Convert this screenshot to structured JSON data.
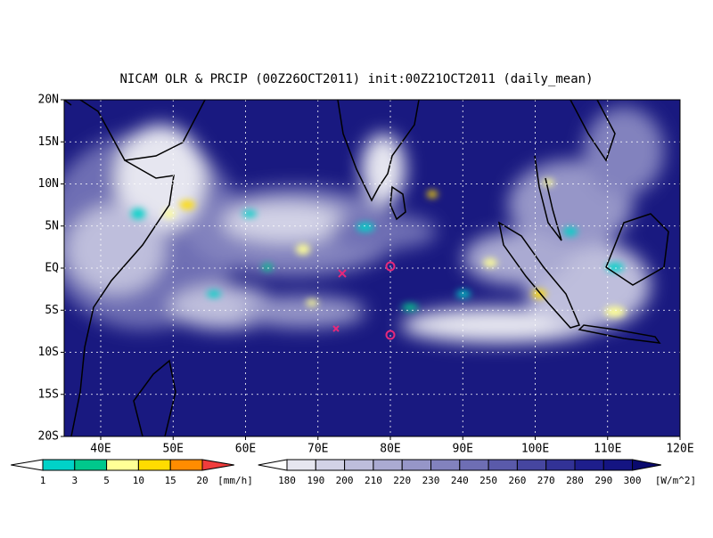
{
  "title": "NICAM OLR & PRCIP (00Z26OCT2011) init:00Z21OCT2011 (daily_mean)",
  "lat_labels": [
    "20N",
    "15N",
    "10N",
    "5N",
    "EQ",
    "5S",
    "10S",
    "15S",
    "20S"
  ],
  "lon_labels": [
    "40E",
    "50E",
    "60E",
    "70E",
    "80E",
    "90E",
    "100E",
    "110E",
    "120E"
  ],
  "precip_colorbar": {
    "ticks": [
      1,
      3,
      5,
      10,
      15,
      20
    ],
    "unit": "[mm/h]",
    "colors": [
      "#ffffff",
      "#00d2c8",
      "#00c88c",
      "#ffff96",
      "#ffdc00",
      "#ff8c00",
      "#f03c3c"
    ]
  },
  "olr_colorbar": {
    "ticks": [
      180,
      190,
      200,
      210,
      220,
      230,
      240,
      250,
      260,
      270,
      280,
      290,
      300
    ],
    "unit": "[W/m^2]",
    "colors": [
      "#ffffff",
      "#e6e6f0",
      "#d2d2e6",
      "#bebedc",
      "#aaaad2",
      "#9696c8",
      "#8282be",
      "#6e6eb4",
      "#5a5aaa",
      "#4646a0",
      "#323296",
      "#1e1e8c",
      "#141482",
      "#0a0a6e"
    ]
  }
}
